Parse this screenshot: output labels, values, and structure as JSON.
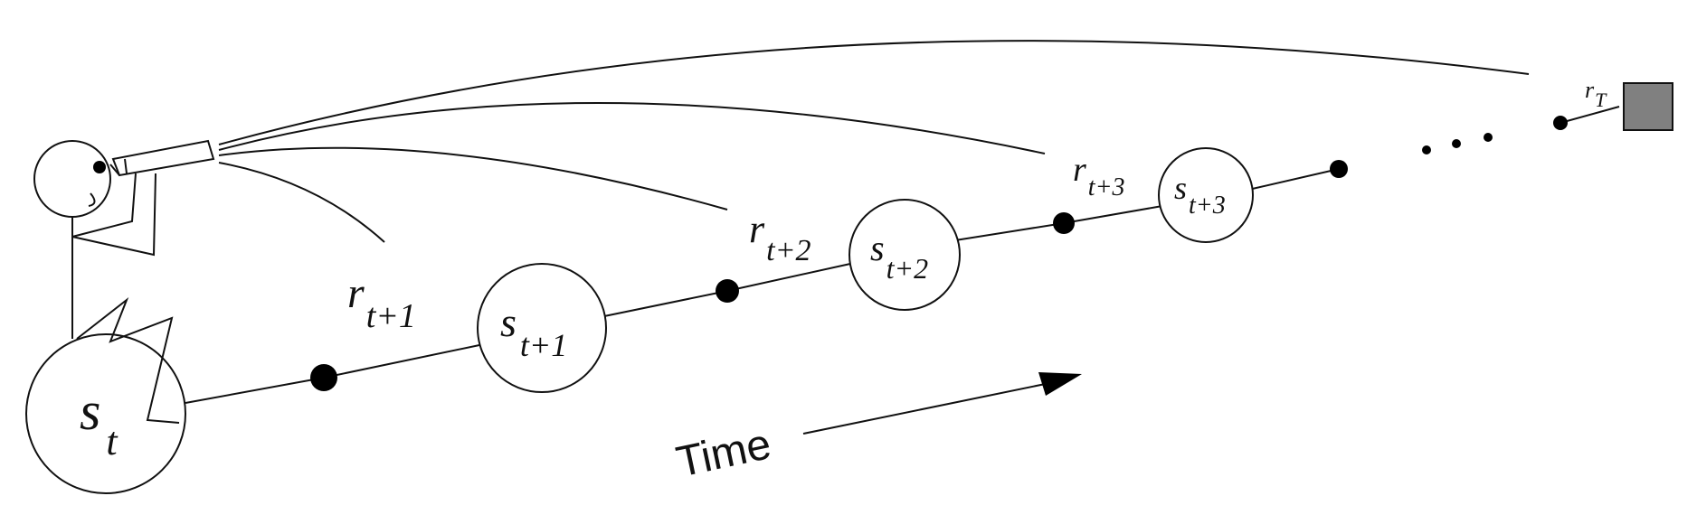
{
  "diagram": {
    "states": [
      {
        "base": "s",
        "sub": "t"
      },
      {
        "base": "s",
        "sub": "t+1"
      },
      {
        "base": "s",
        "sub": "t+2"
      },
      {
        "base": "s",
        "sub": "t+3"
      }
    ],
    "rewards": [
      {
        "base": "r",
        "sub": "t+1"
      },
      {
        "base": "r",
        "sub": "t+2"
      },
      {
        "base": "r",
        "sub": "t+3"
      },
      {
        "base": "r",
        "sub": "T"
      }
    ],
    "ellipsis": "· · ·",
    "time_label": "Time",
    "colors": {
      "ink": "#111111",
      "terminal_fill": "#808080",
      "background": "#ffffff"
    }
  }
}
